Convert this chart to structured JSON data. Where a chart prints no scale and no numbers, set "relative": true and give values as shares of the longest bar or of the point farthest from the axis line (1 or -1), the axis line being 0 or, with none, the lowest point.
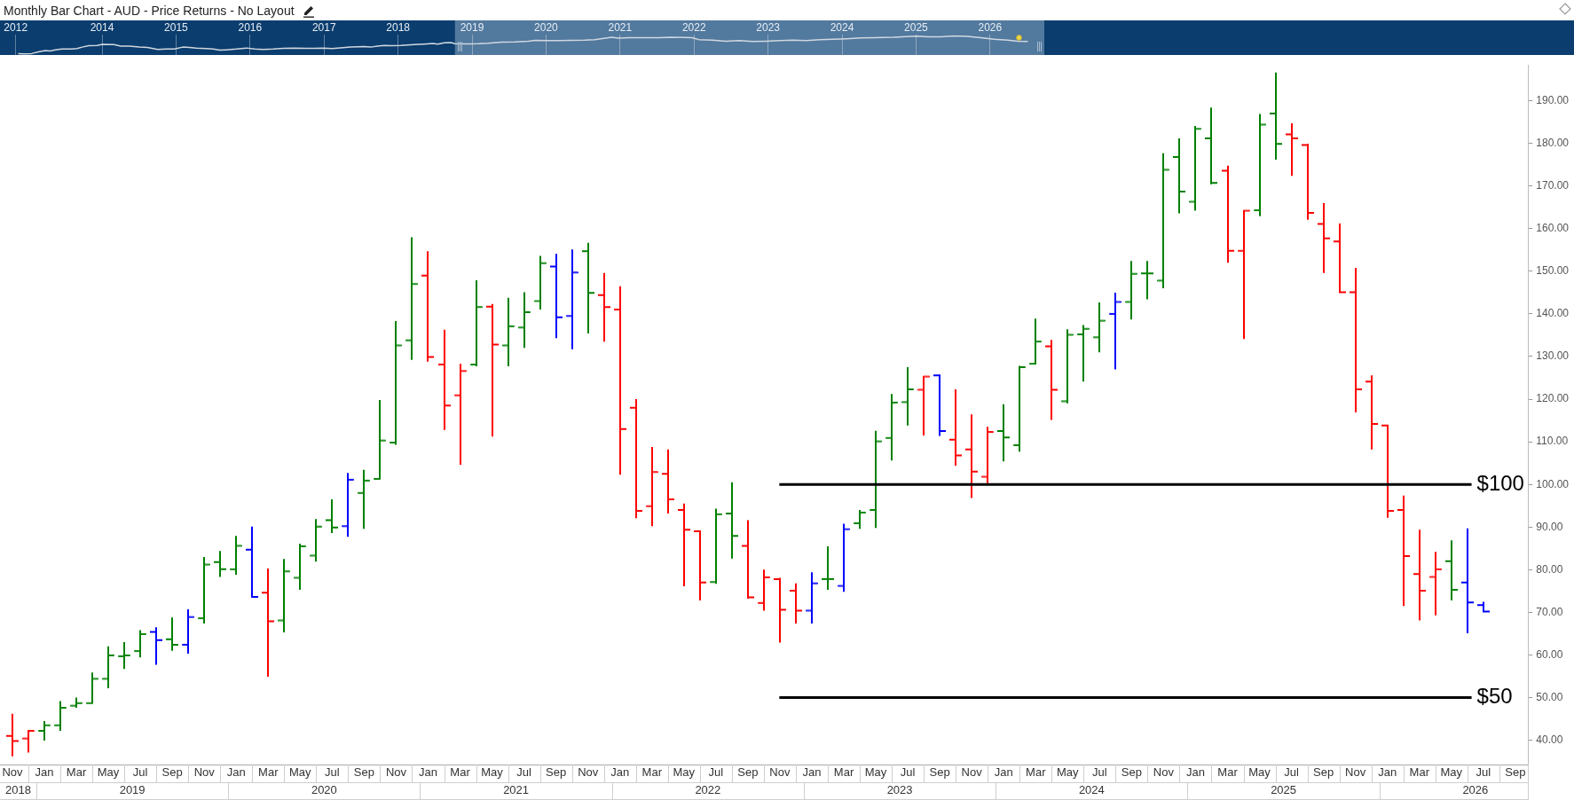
{
  "chart_data": [
    {
      "type": "line",
      "title": "Monthly Bar Chart - AUD - Price Returns - No Layout",
      "relative": true,
      "x": [
        "2012-11-13",
        "2012-12-16",
        "2013-01-19",
        "2013-02-20",
        "2013-03-25",
        "2013-04-19",
        "2013-05-14",
        "2013-06-16",
        "2013-08-05",
        "2013-08-30",
        "2013-09-24",
        "2013-10-27",
        "2013-12-08",
        "2014-01-02",
        "2014-02-27",
        "2014-04-02",
        "2014-05-13",
        "2014-07-02",
        "2014-08-12",
        "2014-10-02",
        "2014-11-12",
        "2014-12-23",
        "2015-02-04",
        "2015-03-07",
        "2015-04-09",
        "2015-05-28",
        "2015-07-01",
        "2015-08-04",
        "2015-09-06",
        "2015-10-25",
        "2015-12-14",
        "2016-01-25",
        "2016-03-06",
        "2016-04-24",
        "2016-06-13",
        "2016-08-03",
        "2016-10-08",
        "2016-11-11",
        "2016-12-30",
        "2017-02-10",
        "2017-03-21",
        "2017-05-10",
        "2017-07-16",
        "2017-08-18",
        "2017-09-21",
        "2017-10-24",
        "2017-11-26",
        "2018-01-15",
        "2018-03-20",
        "2018-05-09",
        "2018-06-20",
        "2018-07-15",
        "2018-08-17",
        "2018-09-20",
        "2018-10-06",
        "2018-12-12",
        "2019-02-01",
        "2019-03-20",
        "2019-05-25",
        "2019-07-30",
        "2019-10-06",
        "2019-11-08",
        "2020-01-10",
        "2020-02-28",
        "2020-05-04",
        "2020-07-10",
        "2020-08-29",
        "2020-11-20",
        "2020-12-23",
        "2021-02-12",
        "2021-04-17",
        "2021-07-09",
        "2021-09-14",
        "2021-12-22",
        "2022-01-25",
        "2022-03-31",
        "2022-06-06",
        "2022-08-11",
        "2022-10-16",
        "2022-12-22",
        "2023-02-27",
        "2023-05-02",
        "2023-07-08",
        "2023-09-13",
        "2023-11-18",
        "2024-01-24",
        "2024-03-30",
        "2024-06-04",
        "2024-09-12",
        "2024-11-17",
        "2025-01-06",
        "2025-02-25",
        "2025-04-30",
        "2025-07-06",
        "2025-09-11",
        "2025-11-16",
        "2026-01-22",
        "2026-03-27",
        "2026-05-16",
        "2026-07-05"
      ],
      "values": [
        0.02,
        0,
        0.02,
        0.11,
        0.19,
        0.16,
        0.22,
        0.27,
        0.27,
        0.3,
        0.38,
        0.46,
        0.47,
        0.53,
        0.52,
        0.44,
        0.43,
        0.38,
        0.36,
        0.25,
        0.27,
        0.27,
        0.38,
        0.36,
        0.32,
        0.3,
        0.27,
        0.21,
        0.23,
        0.27,
        0.33,
        0.27,
        0.25,
        0.27,
        0.31,
        0.33,
        0.31,
        0.31,
        0.33,
        0.3,
        0.34,
        0.38,
        0.41,
        0.38,
        0.44,
        0.47,
        0.46,
        0.47,
        0.52,
        0.55,
        0.58,
        0.55,
        0.62,
        0.63,
        0.57,
        0.56,
        0.57,
        0.6,
        0.66,
        0.67,
        0.71,
        0.76,
        0.74,
        0.74,
        0.76,
        0.77,
        0.79,
        0.93,
        0.88,
        0.91,
        0.91,
        0.91,
        0.93,
        0.91,
        0.8,
        0.77,
        0.71,
        0.74,
        0.69,
        0.71,
        0.74,
        0.77,
        0.75,
        0.79,
        0.82,
        0.85,
        0.89,
        0.91,
        0.93,
        0.97,
        0.99,
        0.96,
        0.96,
        1,
        0.98,
        0.91,
        0.82,
        0.77,
        0.71,
        0.69
      ],
      "color": "#d0d8e0",
      "xlim": [
        "2012-08-15",
        "2026-09-25"
      ],
      "xticks": [
        {
          "value": "2012-11-01",
          "label": "2012"
        },
        {
          "value": "2014-01",
          "label": "2014"
        },
        {
          "value": "2015-01",
          "label": "2015"
        },
        {
          "value": "2016-01",
          "label": "2016"
        },
        {
          "value": "2017-01",
          "label": "2017"
        },
        {
          "value": "2018-01",
          "label": "2018"
        },
        {
          "value": "2019-01",
          "label": "2019"
        },
        {
          "value": "2020-01",
          "label": "2020"
        },
        {
          "value": "2021-01",
          "label": "2021"
        },
        {
          "value": "2022-01",
          "label": "2022"
        },
        {
          "value": "2023-01",
          "label": "2023"
        },
        {
          "value": "2024-01",
          "label": "2024"
        },
        {
          "value": "2025-01",
          "label": "2025"
        },
        {
          "value": "2026-01",
          "label": "2026"
        }
      ],
      "grid": "x",
      "bands": [
        {
          "axis": "x",
          "from": "2018-10-08",
          "to": "2026-09-25",
          "color": "#52799e"
        }
      ]
    },
    {
      "type": "candlestick",
      "x": [
        "2018-11",
        "2018-12",
        "2019-01",
        "2019-02",
        "2019-03",
        "2019-04",
        "2019-05",
        "2019-06",
        "2019-07",
        "2019-08",
        "2019-09",
        "2019-10",
        "2019-11",
        "2019-12",
        "2020-01",
        "2020-02",
        "2020-03",
        "2020-04",
        "2020-05",
        "2020-06",
        "2020-07",
        "2020-08",
        "2020-09",
        "2020-10",
        "2020-11",
        "2020-12",
        "2021-01",
        "2021-02",
        "2021-03",
        "2021-04",
        "2021-05",
        "2021-06",
        "2021-07",
        "2021-08",
        "2021-09",
        "2021-10",
        "2021-11",
        "2021-12",
        "2022-01",
        "2022-02",
        "2022-03",
        "2022-04",
        "2022-05",
        "2022-06",
        "2022-07",
        "2022-08",
        "2022-09",
        "2022-10",
        "2022-11",
        "2022-12",
        "2023-01",
        "2023-02",
        "2023-03",
        "2023-04",
        "2023-05",
        "2023-06",
        "2023-07",
        "2023-08",
        "2023-09",
        "2023-10",
        "2023-11",
        "2023-12",
        "2024-01",
        "2024-02",
        "2024-03",
        "2024-04",
        "2024-05",
        "2024-06",
        "2024-07",
        "2024-08",
        "2024-09",
        "2024-10",
        "2024-11",
        "2024-12",
        "2025-01",
        "2025-02",
        "2025-03",
        "2025-04",
        "2025-05",
        "2025-06",
        "2025-07",
        "2025-08",
        "2025-09",
        "2025-10",
        "2025-11",
        "2025-12",
        "2026-01",
        "2026-02",
        "2026-03",
        "2026-04",
        "2026-05",
        "2026-06",
        "2026-07"
      ],
      "ohlc": [
        [
          41.0,
          46.2,
          36.2,
          39.8
        ],
        [
          40.4,
          42.3,
          37.1,
          42.2
        ],
        [
          42.2,
          44.5,
          39.9,
          43.5
        ],
        [
          43.5,
          49.2,
          42.2,
          47.6
        ],
        [
          48.1,
          50.0,
          47.6,
          48.7
        ],
        [
          48.7,
          55.9,
          48.7,
          54.4
        ],
        [
          54.4,
          62.0,
          52.2,
          59.9
        ],
        [
          59.7,
          63.0,
          56.7,
          59.9
        ],
        [
          60.9,
          65.8,
          59.4,
          64.9
        ],
        [
          65.4,
          66.5,
          57.7,
          63.5
        ],
        [
          63.7,
          68.8,
          61.0,
          62.4
        ],
        [
          62.4,
          70.7,
          60.3,
          68.9
        ],
        [
          68.6,
          83.0,
          67.4,
          81.2
        ],
        [
          81.8,
          84.4,
          78.3,
          80.1
        ],
        [
          80.1,
          87.9,
          78.8,
          85.6
        ],
        [
          84.7,
          90.1,
          73.6,
          73.6
        ],
        [
          74.6,
          80.3,
          54.9,
          67.9
        ],
        [
          68.1,
          82.5,
          65.3,
          79.6
        ],
        [
          78.1,
          86.1,
          75.3,
          85.5
        ],
        [
          83.3,
          91.9,
          81.9,
          90.1
        ],
        [
          91.6,
          96.5,
          88.6,
          89.9
        ],
        [
          90.2,
          102.7,
          87.7,
          101.1
        ],
        [
          98.0,
          103.4,
          89.6,
          100.9
        ],
        [
          101.3,
          119.8,
          101.3,
          110.3
        ],
        [
          109.8,
          138.3,
          109.3,
          132.6
        ],
        [
          133.8,
          158.0,
          129.2,
          147.0
        ],
        [
          149.0,
          154.7,
          128.8,
          129.9
        ],
        [
          128.1,
          136.3,
          112.8,
          118.5
        ],
        [
          120.9,
          128.3,
          104.6,
          126.6
        ],
        [
          128.1,
          147.9,
          127.7,
          141.6
        ],
        [
          141.7,
          142.3,
          111.2,
          132.8
        ],
        [
          132.6,
          143.8,
          127.7,
          137.1
        ],
        [
          136.8,
          145.1,
          132.0,
          140.4
        ],
        [
          143.0,
          153.6,
          141.0,
          151.9
        ],
        [
          151.1,
          154.1,
          134.3,
          139.2
        ],
        [
          139.5,
          155.1,
          131.7,
          149.7
        ],
        [
          154.7,
          156.7,
          135.4,
          144.9
        ],
        [
          144.4,
          149.6,
          133.5,
          141.6
        ],
        [
          141.0,
          146.5,
          102.3,
          113.0
        ],
        [
          118.0,
          120.0,
          92.1,
          93.8
        ],
        [
          94.9,
          108.8,
          90.2,
          102.9
        ],
        [
          102.5,
          108.2,
          93.2,
          96.5
        ],
        [
          94.0,
          95.5,
          76.1,
          89.4
        ],
        [
          89.0,
          89.1,
          72.8,
          77.0
        ],
        [
          77.1,
          94.3,
          76.7,
          93.0
        ],
        [
          93.2,
          100.5,
          82.6,
          87.9
        ],
        [
          85.6,
          91.6,
          73.2,
          73.5
        ],
        [
          72.2,
          80.0,
          70.4,
          78.2
        ],
        [
          77.8,
          78.1,
          62.9,
          70.6
        ],
        [
          75.1,
          76.8,
          67.4,
          70.4
        ],
        [
          70.4,
          79.4,
          67.4,
          76.8
        ],
        [
          77.8,
          85.5,
          75.3,
          77.8
        ],
        [
          76.2,
          90.8,
          74.8,
          89.5
        ],
        [
          90.9,
          94.0,
          89.6,
          93.4
        ],
        [
          94.0,
          112.6,
          89.8,
          110.1
        ],
        [
          110.9,
          121.2,
          105.6,
          119.2
        ],
        [
          119.3,
          127.5,
          113.8,
          122.3
        ],
        [
          122.2,
          125.3,
          111.5,
          125.3
        ],
        [
          125.6,
          125.7,
          111.4,
          112.5
        ],
        [
          110.5,
          122.3,
          104.4,
          106.8
        ],
        [
          108.2,
          116.4,
          96.8,
          103.0
        ],
        [
          101.8,
          113.5,
          100.1,
          112.3
        ],
        [
          112.5,
          118.8,
          105.4,
          111.0
        ],
        [
          109.2,
          127.8,
          107.7,
          127.5
        ],
        [
          128.3,
          138.9,
          128.2,
          133.5
        ],
        [
          132.4,
          133.9,
          115.1,
          122.2
        ],
        [
          119.5,
          136.4,
          119.0,
          135.1
        ],
        [
          135.2,
          137.4,
          124.1,
          136.5
        ],
        [
          134.5,
          142.7,
          131.0,
          138.4
        ],
        [
          140.0,
          145.0,
          127.0,
          142.8
        ],
        [
          142.8,
          152.4,
          138.7,
          149.4
        ],
        [
          149.5,
          152.4,
          143.4,
          149.5
        ],
        [
          147.8,
          177.7,
          146.0,
          173.8
        ],
        [
          176.8,
          181.2,
          163.6,
          168.7
        ],
        [
          166.3,
          184.1,
          164.2,
          183.4
        ],
        [
          181.2,
          188.4,
          170.4,
          170.7
        ],
        [
          173.6,
          174.8,
          152.0,
          154.8
        ],
        [
          154.8,
          164.3,
          134.1,
          164.2
        ],
        [
          164.3,
          186.9,
          162.9,
          184.4
        ],
        [
          187.0,
          196.6,
          176.2,
          179.9
        ],
        [
          182.1,
          184.7,
          172.4,
          181.2
        ],
        [
          179.6,
          179.9,
          162.1,
          163.7
        ],
        [
          161.1,
          166.0,
          149.6,
          157.7
        ],
        [
          157.0,
          161.2,
          145.0,
          145.1
        ],
        [
          145.1,
          150.8,
          116.9,
          122.3
        ],
        [
          124.1,
          125.6,
          108.2,
          114.2
        ],
        [
          113.8,
          113.9,
          92.2,
          93.8
        ],
        [
          94.0,
          97.4,
          71.5,
          83.2
        ],
        [
          79.0,
          89.4,
          68.1,
          75.1
        ],
        [
          78.3,
          84.2,
          69.3,
          80.1
        ],
        [
          82.0,
          86.9,
          72.8,
          75.3
        ],
        [
          77.0,
          89.7,
          65.1,
          72.3
        ],
        [
          71.7,
          72.5,
          70.2,
          70.2
        ]
      ],
      "colors": [
        "#ff0000",
        "#ff0000",
        "#008000",
        "#008000",
        "#008000",
        "#008000",
        "#008000",
        "#008000",
        "#008000",
        "#0000ff",
        "#008000",
        "#0000ff",
        "#008000",
        "#008000",
        "#008000",
        "#0000ff",
        "#ff0000",
        "#008000",
        "#008000",
        "#008000",
        "#008000",
        "#0000ff",
        "#008000",
        "#008000",
        "#008000",
        "#008000",
        "#ff0000",
        "#ff0000",
        "#ff0000",
        "#008000",
        "#ff0000",
        "#008000",
        "#008000",
        "#008000",
        "#0000ff",
        "#0000ff",
        "#008000",
        "#ff0000",
        "#ff0000",
        "#ff0000",
        "#ff0000",
        "#ff0000",
        "#ff0000",
        "#ff0000",
        "#008000",
        "#008000",
        "#ff0000",
        "#ff0000",
        "#ff0000",
        "#ff0000",
        "#0000ff",
        "#008000",
        "#0000ff",
        "#008000",
        "#008000",
        "#008000",
        "#008000",
        "#ff0000",
        "#0000ff",
        "#ff0000",
        "#ff0000",
        "#ff0000",
        "#008000",
        "#008000",
        "#008000",
        "#ff0000",
        "#008000",
        "#008000",
        "#008000",
        "#0000ff",
        "#008000",
        "#008000",
        "#008000",
        "#008000",
        "#008000",
        "#008000",
        "#ff0000",
        "#ff0000",
        "#008000",
        "#008000",
        "#ff0000",
        "#ff0000",
        "#ff0000",
        "#ff0000",
        "#ff0000",
        "#ff0000",
        "#ff0000",
        "#ff0000",
        "#ff0000",
        "#ff0000",
        "#008000",
        "#0000ff",
        "#0000ff"
      ],
      "xlim": [
        "2018-10-08",
        "2026-09-25"
      ],
      "xticks": [
        {
          "value": "2018-11",
          "label": "Nov"
        },
        {
          "value": "2019-01",
          "label": "Jan"
        },
        {
          "value": "2019-03",
          "label": "Mar"
        },
        {
          "value": "2019-05",
          "label": "May"
        },
        {
          "value": "2019-07",
          "label": "Jul"
        },
        {
          "value": "2019-09",
          "label": "Sep"
        },
        {
          "value": "2019-11",
          "label": "Nov"
        },
        {
          "value": "2020-01",
          "label": "Jan"
        },
        {
          "value": "2020-03",
          "label": "Mar"
        },
        {
          "value": "2020-05",
          "label": "May"
        },
        {
          "value": "2020-07",
          "label": "Jul"
        },
        {
          "value": "2020-09",
          "label": "Sep"
        },
        {
          "value": "2020-11",
          "label": "Nov"
        },
        {
          "value": "2021-01",
          "label": "Jan"
        },
        {
          "value": "2021-03",
          "label": "Mar"
        },
        {
          "value": "2021-05",
          "label": "May"
        },
        {
          "value": "2021-07",
          "label": "Jul"
        },
        {
          "value": "2021-09",
          "label": "Sep"
        },
        {
          "value": "2021-11",
          "label": "Nov"
        },
        {
          "value": "2022-01",
          "label": "Jan"
        },
        {
          "value": "2022-03",
          "label": "Mar"
        },
        {
          "value": "2022-05",
          "label": "May"
        },
        {
          "value": "2022-07",
          "label": "Jul"
        },
        {
          "value": "2022-09",
          "label": "Sep"
        },
        {
          "value": "2022-11",
          "label": "Nov"
        },
        {
          "value": "2023-01",
          "label": "Jan"
        },
        {
          "value": "2023-03",
          "label": "Mar"
        },
        {
          "value": "2023-05",
          "label": "May"
        },
        {
          "value": "2023-07",
          "label": "Jul"
        },
        {
          "value": "2023-09",
          "label": "Sep"
        },
        {
          "value": "2023-11",
          "label": "Nov"
        },
        {
          "value": "2024-01",
          "label": "Jan"
        },
        {
          "value": "2024-03",
          "label": "Mar"
        },
        {
          "value": "2024-05",
          "label": "May"
        },
        {
          "value": "2024-07",
          "label": "Jul"
        },
        {
          "value": "2024-09",
          "label": "Sep"
        },
        {
          "value": "2024-11",
          "label": "Nov"
        },
        {
          "value": "2025-01",
          "label": "Jan"
        },
        {
          "value": "2025-03",
          "label": "Mar"
        },
        {
          "value": "2025-05",
          "label": "May"
        },
        {
          "value": "2025-07",
          "label": "Jul"
        },
        {
          "value": "2025-09",
          "label": "Sep"
        },
        {
          "value": "2025-11",
          "label": "Nov"
        },
        {
          "value": "2026-01",
          "label": "Jan"
        },
        {
          "value": "2026-03",
          "label": "Mar"
        },
        {
          "value": "2026-05",
          "label": "May"
        },
        {
          "value": "2026-07",
          "label": "Jul"
        },
        {
          "value": "2026-09",
          "label": "Sep"
        }
      ],
      "x2lim": [
        "2018-10-08",
        "2026-09-25"
      ],
      "x2ticks": [
        {
          "value": "2018-11-12",
          "label": "2018"
        },
        {
          "value": "2019-06-16",
          "label": "2019"
        },
        {
          "value": "2020-06-16",
          "label": "2020"
        },
        {
          "value": "2021-06-16",
          "label": "2021"
        },
        {
          "value": "2022-06-16",
          "label": "2022"
        },
        {
          "value": "2023-06-16",
          "label": "2023"
        },
        {
          "value": "2024-06-16",
          "label": "2024"
        },
        {
          "value": "2025-06-16",
          "label": "2025"
        },
        {
          "value": "2026-06-16",
          "label": "2026"
        }
      ],
      "ylim": [
        34.3,
        198.4
      ],
      "yticks": [
        {
          "value": 40,
          "label": "40.00"
        },
        {
          "value": 50,
          "label": "50.00"
        },
        {
          "value": 60,
          "label": "60.00"
        },
        {
          "value": 70,
          "label": "70.00"
        },
        {
          "value": 80,
          "label": "80.00"
        },
        {
          "value": 90,
          "label": "90.00"
        },
        {
          "value": 100,
          "label": "100.00"
        },
        {
          "value": 110,
          "label": "110.00"
        },
        {
          "value": 120,
          "label": "120.00"
        },
        {
          "value": 130,
          "label": "130.00"
        },
        {
          "value": 140,
          "label": "140.00"
        },
        {
          "value": 150,
          "label": "150.00"
        },
        {
          "value": 160,
          "label": "160.00"
        },
        {
          "value": 170,
          "label": "170.00"
        },
        {
          "value": 180,
          "label": "180.00"
        },
        {
          "value": 190,
          "label": "190.00"
        }
      ],
      "ref_lines": [
        {
          "axis": "y",
          "value": 100,
          "label": "$100",
          "color": "#000000"
        },
        {
          "axis": "y",
          "value": 50,
          "label": "$50",
          "color": "#000000"
        }
      ]
    }
  ]
}
